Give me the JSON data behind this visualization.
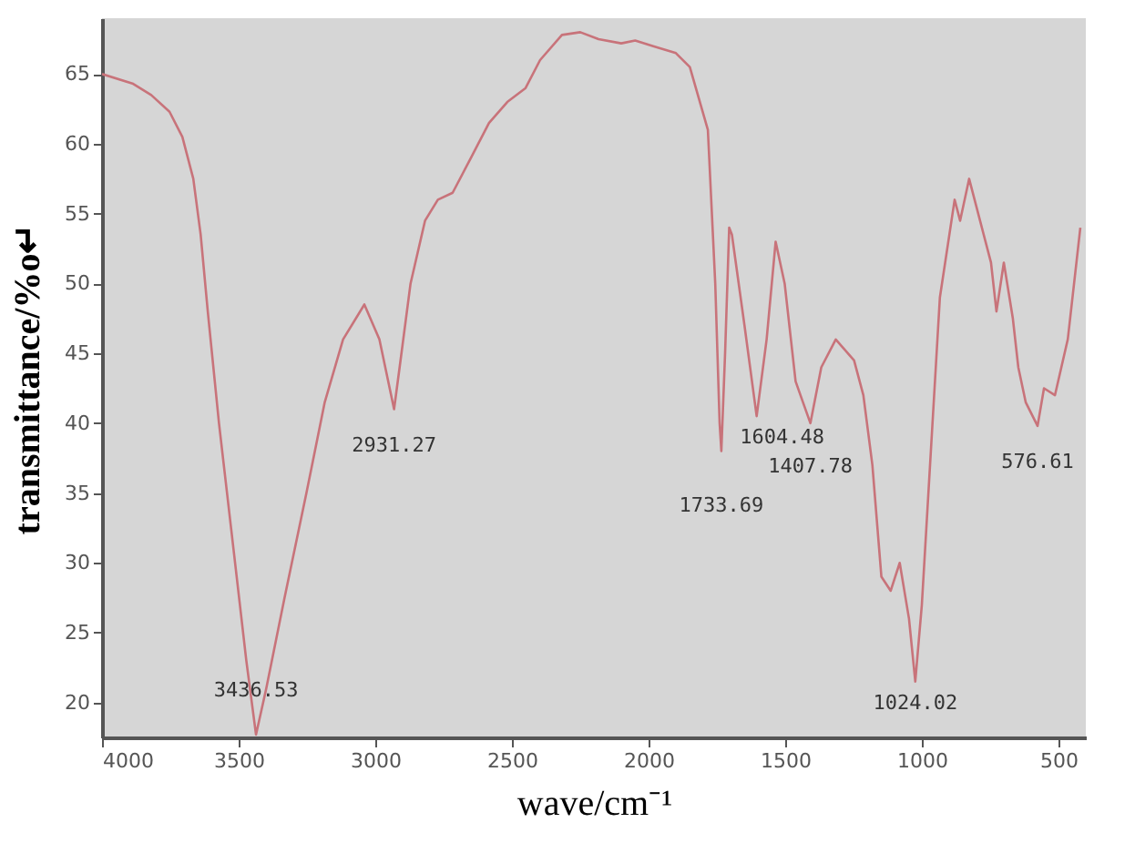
{
  "chart_data": {
    "type": "line",
    "xlabel": "wave/cm⁻¹",
    "ylabel": "transmittance/%o↵",
    "xlim": [
      4000,
      400
    ],
    "ylim": [
      17.5,
      69
    ],
    "xticks": [
      4000,
      3500,
      3000,
      2500,
      2000,
      1500,
      1000,
      500
    ],
    "yticks": [
      20,
      25,
      30,
      35,
      40,
      45,
      50,
      55,
      60,
      65
    ],
    "grid": false,
    "marker": "none",
    "line_style": "solid",
    "series": [
      {
        "color": "#c8737a",
        "x": [
          4000,
          3886,
          3820,
          3753,
          3706,
          3666,
          3639,
          3613,
          3572,
          3519,
          3472,
          3436.53,
          3399,
          3332,
          3252,
          3185,
          3118,
          3040,
          2985,
          2931.27,
          2911,
          2871,
          2818,
          2771,
          2717,
          2650,
          2584,
          2517,
          2450,
          2397,
          2317,
          2250,
          2183,
          2100,
          2049,
          1983,
          1900,
          1849,
          1783,
          1756,
          1740,
          1733.69,
          1720,
          1705,
          1695,
          1649,
          1604.48,
          1568,
          1535,
          1502,
          1462,
          1435,
          1407.78,
          1368,
          1315,
          1248,
          1214,
          1181,
          1148,
          1114,
          1081,
          1047,
          1024.02,
          1000,
          967,
          934,
          880,
          860,
          827,
          747,
          727,
          700,
          667,
          647,
          620,
          576.61,
          553,
          513,
          466,
          420
        ],
        "values": [
          65,
          64.3,
          63.5,
          62.3,
          60.5,
          57.5,
          53.5,
          48,
          40,
          31,
          23,
          17.7,
          21,
          27.5,
          35,
          41.5,
          46,
          48.5,
          46,
          41,
          44,
          50,
          54.5,
          56,
          56.5,
          59,
          61.5,
          63,
          64,
          66,
          67.8,
          68,
          67.5,
          67.2,
          67.4,
          67,
          66.5,
          65.5,
          61,
          50,
          40,
          38,
          45,
          54,
          53.5,
          47,
          40.5,
          46,
          53,
          50,
          43,
          41.5,
          40,
          44,
          46,
          44.5,
          42,
          37,
          29,
          28,
          30,
          26,
          21.5,
          27,
          38,
          49,
          56,
          54.5,
          57.5,
          51.5,
          48,
          51.5,
          47.5,
          44,
          41.5,
          39.8,
          42.5,
          42,
          46,
          54
        ]
      }
    ],
    "annotations": [
      {
        "text": "3436.53",
        "x": 3436.53,
        "y": 17.7
      },
      {
        "text": "2931.27",
        "x": 2931.27,
        "y": 41
      },
      {
        "text": "1733.69",
        "x": 1733.69,
        "y": 38
      },
      {
        "text": "1604.48",
        "x": 1604.48,
        "y": 40.5
      },
      {
        "text": "1407.78",
        "x": 1407.78,
        "y": 40
      },
      {
        "text": "1024.02",
        "x": 1024.02,
        "y": 21.5
      },
      {
        "text": "576.61",
        "x": 576.61,
        "y": 39.8
      }
    ]
  }
}
